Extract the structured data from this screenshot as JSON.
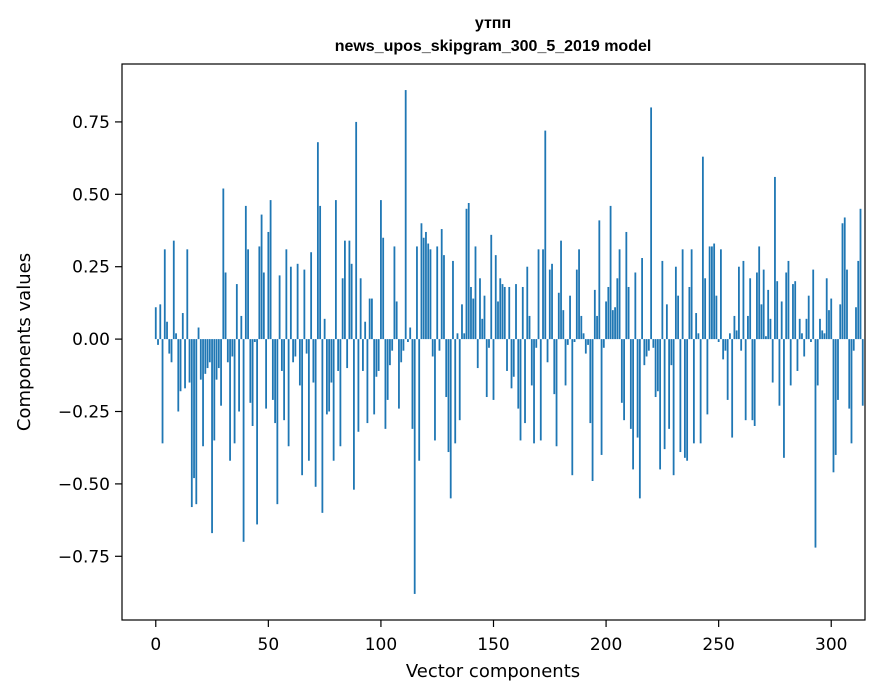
{
  "chart_data": {
    "type": "bar",
    "title": "утпп",
    "subtitle": "news_upos_skipgram_300_5_2019 model",
    "xlabel": "Vector components",
    "ylabel": "Components values",
    "xlim": [
      -15,
      315
    ],
    "ylim": [
      -0.97,
      0.95
    ],
    "xticks": [
      0,
      50,
      100,
      150,
      200,
      250,
      300
    ],
    "xtick_labels": [
      "0",
      "50",
      "100",
      "150",
      "200",
      "250",
      "300"
    ],
    "yticks": [
      0.75,
      0.5,
      0.25,
      0.0,
      -0.25,
      -0.5,
      -0.75
    ],
    "ytick_labels": [
      "0.75",
      "0.50",
      "0.25",
      "0.00",
      "−0.25",
      "−0.50",
      "−0.75"
    ],
    "color": "#1f77b4",
    "values": [
      0.11,
      -0.02,
      0.12,
      -0.36,
      0.31,
      0.06,
      -0.05,
      -0.08,
      0.34,
      0.02,
      -0.25,
      -0.18,
      0.09,
      -0.17,
      0.31,
      -0.15,
      -0.58,
      -0.48,
      -0.57,
      0.04,
      -0.14,
      -0.37,
      -0.12,
      -0.1,
      -0.08,
      -0.67,
      -0.35,
      -0.14,
      -0.1,
      -0.23,
      0.52,
      0.23,
      -0.08,
      -0.42,
      -0.06,
      -0.36,
      0.19,
      -0.25,
      0.08,
      -0.7,
      0.46,
      0.31,
      -0.22,
      -0.3,
      -0.01,
      -0.64,
      0.32,
      0.43,
      0.23,
      -0.24,
      0.37,
      0.48,
      -0.21,
      -0.29,
      -0.57,
      0.22,
      -0.11,
      -0.28,
      0.31,
      -0.37,
      0.25,
      -0.08,
      -0.06,
      0.26,
      -0.16,
      -0.47,
      0.24,
      -0.05,
      -0.42,
      0.3,
      -0.15,
      -0.51,
      0.68,
      0.46,
      -0.6,
      0.07,
      -0.26,
      -0.25,
      -0.15,
      -0.42,
      0.48,
      -0.11,
      -0.37,
      0.21,
      0.34,
      -0.1,
      0.34,
      0.26,
      -0.52,
      0.75,
      -0.32,
      0.21,
      -0.11,
      0.06,
      -0.29,
      0.14,
      0.14,
      -0.26,
      -0.13,
      -0.11,
      0.48,
      0.35,
      -0.31,
      -0.21,
      -0.09,
      -0.04,
      0.32,
      0.13,
      -0.24,
      -0.08,
      -0.04,
      0.86,
      -0.01,
      0.04,
      -0.31,
      -0.88,
      0.32,
      -0.42,
      0.4,
      0.35,
      0.37,
      0.33,
      0.31,
      -0.06,
      -0.35,
      0.32,
      -0.04,
      0.38,
      0.29,
      -0.2,
      -0.39,
      -0.55,
      0.27,
      -0.36,
      0.02,
      -0.28,
      0.12,
      0.02,
      0.45,
      0.47,
      0.18,
      0.14,
      0.32,
      -0.1,
      0.21,
      0.07,
      0.15,
      -0.2,
      -0.03,
      0.36,
      -0.21,
      0.29,
      0.13,
      0.21,
      0.19,
      0.18,
      -0.11,
      0.18,
      -0.17,
      -0.13,
      0.19,
      -0.24,
      -0.35,
      0.18,
      -0.29,
      0.25,
      0.08,
      -0.16,
      -0.36,
      -0.03,
      0.31,
      -0.35,
      0.31,
      0.72,
      -0.08,
      0.24,
      0.26,
      -0.19,
      -0.37,
      0.16,
      0.34,
      0.1,
      -0.16,
      -0.02,
      0.15,
      -0.47,
      -0.01,
      0.24,
      0.31,
      0.08,
      0.02,
      -0.05,
      -0.02,
      -0.29,
      -0.49,
      0.17,
      0.08,
      0.41,
      -0.4,
      -0.03,
      0.13,
      0.18,
      0.46,
      0.1,
      0.11,
      0.21,
      0.31,
      -0.22,
      -0.28,
      0.37,
      0.18,
      -0.31,
      -0.45,
      0.23,
      -0.34,
      -0.55,
      0.28,
      -0.09,
      -0.06,
      -0.04,
      0.8,
      -0.03,
      -0.2,
      -0.18,
      -0.45,
      0.27,
      -0.38,
      0.12,
      -0.31,
      -0.09,
      -0.47,
      0.25,
      0.15,
      -0.39,
      0.31,
      -0.41,
      -0.42,
      0.18,
      0.31,
      -0.36,
      0.09,
      0.02,
      -0.36,
      0.63,
      0.21,
      -0.26,
      0.32,
      0.32,
      0.33,
      0.15,
      -0.01,
      0.31,
      -0.07,
      -0.04,
      -0.21,
      0.02,
      -0.34,
      0.08,
      0.03,
      0.25,
      -0.04,
      0.27,
      -0.28,
      0.08,
      0.21,
      -0.28,
      -0.3,
      0.23,
      0.32,
      0.12,
      0.24,
      0.01,
      0.17,
      0.07,
      -0.15,
      0.56,
      0.2,
      -0.23,
      0.13,
      -0.41,
      0.23,
      0.27,
      -0.16,
      0.19,
      0.2,
      -0.11,
      0.07,
      0.02,
      -0.06,
      0.07,
      0.15,
      -0.01,
      0.24,
      -0.72,
      -0.16,
      0.07,
      0.03,
      0.02,
      0.21,
      0.1,
      0.14,
      -0.46,
      -0.4,
      -0.21,
      0.12,
      0.4,
      0.42,
      0.24,
      -0.24,
      -0.36,
      -0.04,
      0.11,
      0.27,
      0.45,
      -0.23
    ]
  }
}
